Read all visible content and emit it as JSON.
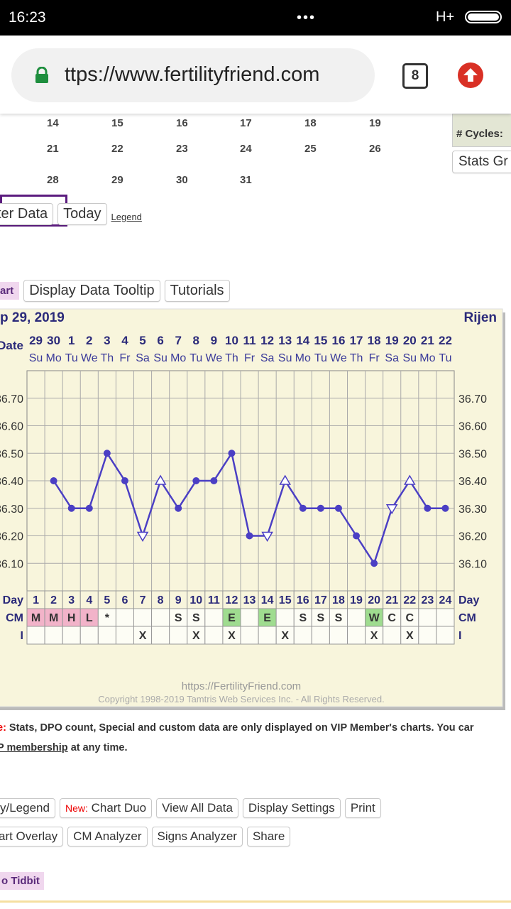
{
  "status_bar": {
    "time": "16:23",
    "network": "H+"
  },
  "browser": {
    "url": "ttps://www.fertilityfriend.com",
    "tab_count": "8"
  },
  "calendar": {
    "rows": [
      [
        14,
        15,
        16,
        17,
        18,
        19
      ],
      [
        21,
        22,
        23,
        24,
        25,
        26
      ],
      [
        28,
        29,
        30,
        31
      ]
    ]
  },
  "sidebar": {
    "cycles_label": "# Cycles:",
    "stats_button": "Stats Gr"
  },
  "toolbar1": {
    "buttons": [
      "ter Data",
      "Today"
    ],
    "legend_link": "Legend"
  },
  "toolbar2": {
    "tag": "art",
    "buttons": [
      "Display Data Tooltip",
      "Tutorials"
    ]
  },
  "chart_data": {
    "type": "line",
    "title": "p 29, 2019",
    "subtitle": "Rijen",
    "date_label": "Date",
    "dates": [
      29,
      30,
      1,
      2,
      3,
      4,
      5,
      6,
      7,
      8,
      9,
      10,
      11,
      12,
      13,
      14,
      15,
      16,
      17,
      18,
      19,
      20,
      21,
      22
    ],
    "weekdays": [
      "Su",
      "Mo",
      "Tu",
      "We",
      "Th",
      "Fr",
      "Sa",
      "Su",
      "Mo",
      "Tu",
      "We",
      "Th",
      "Fr",
      "Sa",
      "Su",
      "Mo",
      "Tu",
      "We",
      "Th",
      "Fr",
      "Sa",
      "Su",
      "Mo",
      "Tu"
    ],
    "x_label": "Day",
    "categories": [
      1,
      2,
      3,
      4,
      5,
      6,
      7,
      8,
      9,
      10,
      11,
      12,
      13,
      14,
      15,
      16,
      17,
      18,
      19,
      20,
      21,
      22,
      23,
      24
    ],
    "values": [
      null,
      36.4,
      36.3,
      36.3,
      36.5,
      36.4,
      36.2,
      36.4,
      36.3,
      36.4,
      36.4,
      36.5,
      36.2,
      36.2,
      36.4,
      36.3,
      36.3,
      36.3,
      36.2,
      36.1,
      36.3,
      36.4,
      36.3,
      36.3
    ],
    "markers": [
      null,
      "dot",
      "dot",
      "dot",
      "dot",
      "dot",
      "down",
      "up",
      "dot",
      "dot",
      "dot",
      "dot",
      "dot",
      "down",
      "up",
      "dot",
      "dot",
      "dot",
      "dot",
      "dot",
      "down",
      "up",
      "dot",
      "dot"
    ],
    "color": "#4b3fc4",
    "ylim": [
      36.0,
      36.8
    ],
    "yticks": [
      {
        "value": 36.1,
        "label": "36.10"
      },
      {
        "value": 36.2,
        "label": "36.20"
      },
      {
        "value": 36.3,
        "label": "36.30"
      },
      {
        "value": 36.4,
        "label": "36.40"
      },
      {
        "value": 36.5,
        "label": "36.50"
      },
      {
        "value": 36.6,
        "label": "36.60"
      },
      {
        "value": 36.7,
        "label": "36.70"
      }
    ],
    "grid": true,
    "rows": [
      {
        "label": "CM",
        "values": [
          "M",
          "M",
          "H",
          "L",
          "*",
          null,
          null,
          null,
          "S",
          "S",
          null,
          "E",
          null,
          "E",
          null,
          "S",
          "S",
          "S",
          null,
          "W",
          "C",
          "C",
          null,
          null
        ],
        "colors": [
          "#f2b3c9",
          "#f2b3c9",
          "#f2b3c9",
          "#f2b3c9",
          null,
          null,
          null,
          null,
          null,
          null,
          null,
          "#9fdc8f",
          null,
          "#9fdc8f",
          null,
          null,
          null,
          null,
          null,
          "#9fdc8f",
          null,
          null,
          null,
          null
        ]
      },
      {
        "label": "I",
        "values": [
          null,
          null,
          null,
          null,
          null,
          null,
          "X",
          null,
          null,
          "X",
          null,
          "X",
          null,
          null,
          "X",
          null,
          null,
          null,
          null,
          "X",
          null,
          "X",
          null,
          null
        ]
      }
    ]
  },
  "footer": {
    "url": "https://FertilityFriend.com",
    "copyright": "Copyright 1998-2019 Tamtris Web Services Inc. - All Rights Reserved."
  },
  "notice": {
    "prefix": "e:",
    "text": " Stats, DPO count, Special and custom data are only displayed on VIP Member's charts. You car",
    "link": "P membership",
    "suffix": " at any time."
  },
  "buttons_row1": [
    {
      "label": "y/Legend"
    },
    {
      "badge": "New:",
      "label": " Chart Duo"
    },
    {
      "label": "View All Data"
    },
    {
      "label": "Display Settings"
    },
    {
      "label": "Print"
    }
  ],
  "buttons_row2": [
    {
      "label": "art Overlay"
    },
    {
      "label": "CM Analyzer"
    },
    {
      "label": "Signs Analyzer"
    },
    {
      "label": "Share"
    }
  ],
  "tidbit": "o Tidbit"
}
